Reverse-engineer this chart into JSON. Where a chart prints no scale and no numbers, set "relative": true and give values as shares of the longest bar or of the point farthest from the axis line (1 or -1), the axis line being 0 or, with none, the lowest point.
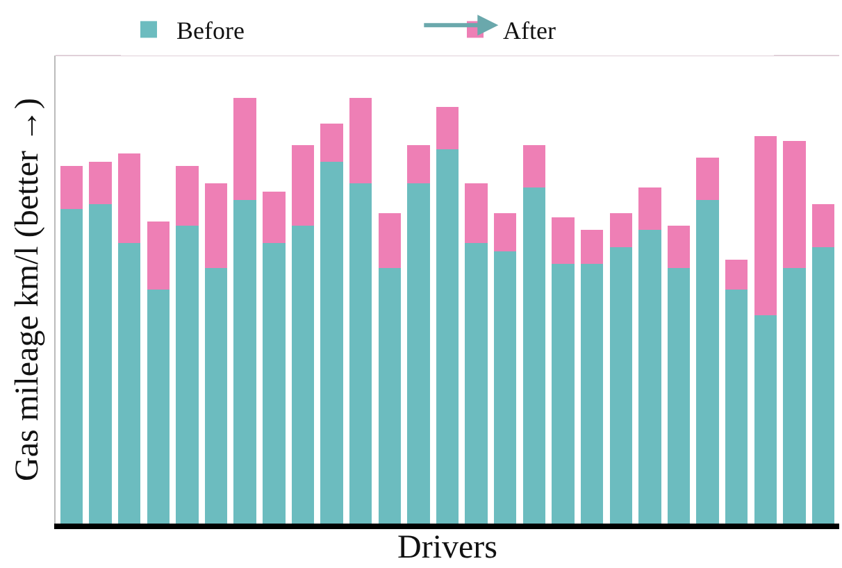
{
  "chart_data": {
    "type": "bar",
    "stacked": true,
    "relative": true,
    "xlabel": "Drivers",
    "ylabel": "Gas mileage km/l (better →)",
    "legend": "top",
    "categories": [
      null,
      null,
      null,
      null,
      null,
      null,
      null,
      null,
      null,
      null,
      null,
      null,
      null,
      null,
      null,
      null,
      null,
      null,
      null,
      null,
      null,
      null,
      null,
      null,
      null,
      null,
      null
    ],
    "series": [
      {
        "name": "Before",
        "color": "#6cbcbf",
        "values": [
          0.74,
          0.75,
          0.66,
          0.55,
          0.7,
          0.6,
          0.76,
          0.66,
          0.7,
          0.85,
          0.8,
          0.6,
          0.8,
          0.88,
          0.66,
          0.64,
          0.79,
          0.61,
          0.61,
          0.65,
          0.69,
          0.6,
          0.76,
          0.55,
          0.49,
          0.6,
          0.65
        ]
      },
      {
        "name": "After",
        "color": "#ee7fb5",
        "values": [
          0.1,
          0.1,
          0.21,
          0.16,
          0.14,
          0.2,
          0.24,
          0.12,
          0.19,
          0.09,
          0.2,
          0.13,
          0.09,
          0.1,
          0.14,
          0.09,
          0.1,
          0.11,
          0.08,
          0.08,
          0.1,
          0.1,
          0.1,
          0.07,
          0.42,
          0.3,
          0.1
        ]
      }
    ]
  }
}
